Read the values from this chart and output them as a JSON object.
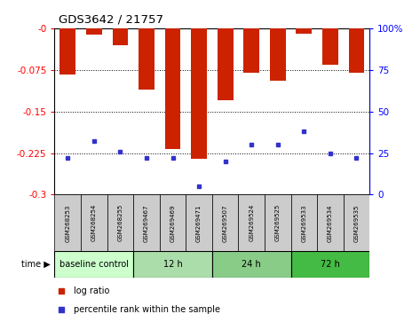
{
  "title": "GDS3642 / 21757",
  "samples": [
    "GSM268253",
    "GSM268254",
    "GSM268255",
    "GSM269467",
    "GSM269469",
    "GSM269471",
    "GSM269507",
    "GSM269524",
    "GSM269525",
    "GSM269533",
    "GSM269534",
    "GSM269535"
  ],
  "log_ratio": [
    -0.083,
    -0.012,
    -0.03,
    -0.11,
    -0.218,
    -0.235,
    -0.13,
    -0.08,
    -0.095,
    -0.01,
    -0.065,
    -0.08
  ],
  "percentile_rank": [
    22,
    32,
    26,
    22,
    22,
    5,
    20,
    30,
    30,
    38,
    25,
    22
  ],
  "ylim_left": [
    -0.3,
    0.0
  ],
  "yticks_left": [
    -0.3,
    -0.225,
    -0.15,
    -0.075,
    0
  ],
  "ytick_labels_left": [
    "-0.3",
    "-0.225",
    "-0.15",
    "-0.075",
    "-0"
  ],
  "ylim_right": [
    0,
    100
  ],
  "yticks_right": [
    0,
    25,
    50,
    75,
    100
  ],
  "ytick_labels_right": [
    "0",
    "25",
    "50",
    "75",
    "100%"
  ],
  "groups": [
    {
      "label": "baseline control",
      "start": 0,
      "end": 3,
      "color": "#ccffcc"
    },
    {
      "label": "12 h",
      "start": 3,
      "end": 6,
      "color": "#aaddaa"
    },
    {
      "label": "24 h",
      "start": 6,
      "end": 9,
      "color": "#88cc88"
    },
    {
      "label": "72 h",
      "start": 9,
      "end": 12,
      "color": "#44bb44"
    }
  ],
  "bar_color": "#cc2200",
  "dot_color": "#3333cc",
  "bg_color": "#ffffff",
  "label_bg": "#cccccc",
  "legend_log_ratio": "log ratio",
  "legend_percentile": "percentile rank within the sample",
  "time_label": "time"
}
